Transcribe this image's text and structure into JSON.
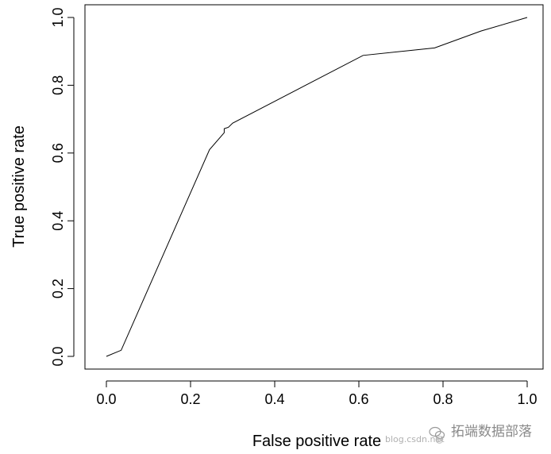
{
  "chart_data": {
    "type": "line",
    "xlabel": "False positive rate",
    "ylabel": "True positive rate",
    "xlim": [
      0,
      1
    ],
    "ylim": [
      0,
      1
    ],
    "xticks": [
      0.0,
      0.2,
      0.4,
      0.6,
      0.8,
      1.0
    ],
    "xtick_labels": [
      "0.0",
      "0.2",
      "0.4",
      "0.6",
      "0.8",
      "1.0"
    ],
    "yticks": [
      0.0,
      0.2,
      0.4,
      0.6,
      0.8,
      1.0
    ],
    "ytick_labels": [
      "0.0",
      "0.2",
      "0.4",
      "0.6",
      "0.8",
      "1.0"
    ],
    "grid": false,
    "series": [
      {
        "color": "#000000",
        "x": [
          0.0,
          0.035,
          0.245,
          0.28,
          0.28,
          0.29,
          0.3,
          0.61,
          0.78,
          0.89,
          1.0
        ],
        "y": [
          0.0,
          0.018,
          0.61,
          0.66,
          0.672,
          0.676,
          0.688,
          0.888,
          0.91,
          0.96,
          1.0
        ]
      }
    ]
  },
  "watermark": {
    "url_text": "blog.csdn.net",
    "handle_text": "@",
    "brand_text": "拓端数据部落"
  }
}
